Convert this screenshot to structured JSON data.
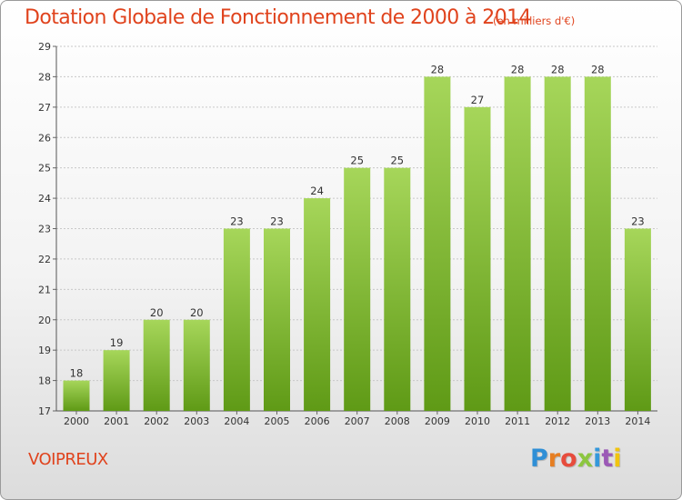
{
  "title": "Dotation Globale de Fonctionnement de 2000 à 2014",
  "subtitle": "(en milliers d'€)",
  "commune": "VOIPREUX",
  "logo_text": "Proxiti",
  "colors": {
    "title": "#e0431d",
    "bar_top": "#a6d65a",
    "bar_bottom": "#5f9a16",
    "gridline": "#c8c8c8"
  },
  "chart_data": {
    "type": "bar",
    "categories": [
      "2000",
      "2001",
      "2002",
      "2003",
      "2004",
      "2005",
      "2006",
      "2007",
      "2008",
      "2009",
      "2010",
      "2011",
      "2012",
      "2013",
      "2014"
    ],
    "values": [
      18,
      19,
      20,
      20,
      23,
      23,
      24,
      25,
      25,
      28,
      27,
      28,
      28,
      28,
      23
    ],
    "title": "Dotation Globale de Fonctionnement de 2000 à 2014",
    "subtitle": "(en milliers d'€)",
    "xlabel": "",
    "ylabel": "",
    "ylim": [
      17,
      29
    ],
    "yticks": [
      17,
      18,
      19,
      20,
      21,
      22,
      23,
      24,
      25,
      26,
      27,
      28,
      29
    ],
    "grid": true,
    "legend": "none"
  }
}
